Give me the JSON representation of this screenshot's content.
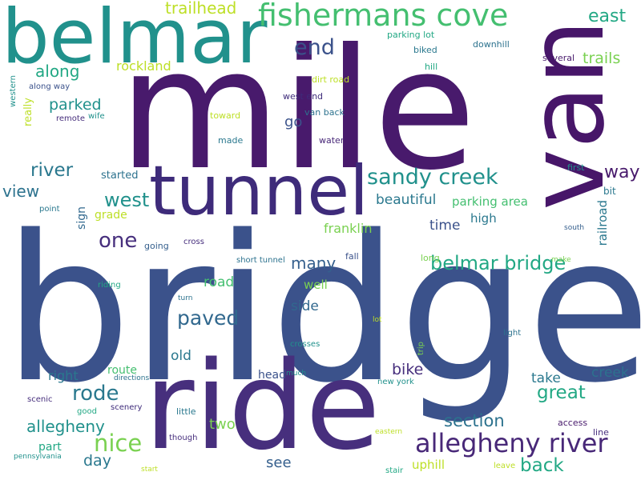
{
  "palette": {
    "p1": "#481a6c",
    "p2": "#472f7d",
    "p3": "#3b518b",
    "p4": "#355f8d",
    "p5": "#2a788e",
    "p6": "#21918c",
    "p7": "#22a884",
    "p8": "#44bf70",
    "p9": "#7ad151",
    "p10": "#bddf26"
  },
  "words": [
    {
      "id": "bridge",
      "text": "bridge",
      "color": "#3b528b"
    },
    {
      "id": "mile",
      "text": "mile",
      "color": "#481a6c"
    },
    {
      "id": "van",
      "text": "van",
      "color": "#471669"
    },
    {
      "id": "ride",
      "text": "ride",
      "color": "#472f7d"
    },
    {
      "id": "tunnel",
      "text": "tunnel",
      "color": "#3e2b7a"
    },
    {
      "id": "belmar",
      "text": "belmar",
      "color": "#21918c"
    },
    {
      "id": "fishermans-cove",
      "text": "fishermans cove",
      "color": "#44bf70"
    },
    {
      "id": "allegheny-river",
      "text": "allegheny river",
      "color": "#482878"
    },
    {
      "id": "sandy-creek",
      "text": "sandy creek",
      "color": "#21918c"
    },
    {
      "id": "belmar-bridge",
      "text": "belmar bridge",
      "color": "#22a884"
    },
    {
      "id": "east",
      "text": "east",
      "color": "#22a884"
    },
    {
      "id": "end",
      "text": "end",
      "color": "#3b528b"
    },
    {
      "id": "trailhead",
      "text": "trailhead",
      "color": "#bddf26"
    },
    {
      "id": "trails",
      "text": "trails",
      "color": "#7ad151"
    },
    {
      "id": "along",
      "text": "along",
      "color": "#22a884"
    },
    {
      "id": "parked",
      "text": "parked",
      "color": "#21918c"
    },
    {
      "id": "rockland",
      "text": "rockland",
      "color": "#bddf26"
    },
    {
      "id": "river",
      "text": "river",
      "color": "#2a788e"
    },
    {
      "id": "view",
      "text": "view",
      "color": "#2c728e"
    },
    {
      "id": "west",
      "text": "west",
      "color": "#21918c"
    },
    {
      "id": "one",
      "text": "one",
      "color": "#472f7d"
    },
    {
      "id": "way",
      "text": "way",
      "color": "#481a6c"
    },
    {
      "id": "nice",
      "text": "nice",
      "color": "#7ad151"
    },
    {
      "id": "rode",
      "text": "rode",
      "color": "#2a788e"
    },
    {
      "id": "paved",
      "text": "paved",
      "color": "#31688e"
    },
    {
      "id": "great",
      "text": "great",
      "color": "#22a884"
    },
    {
      "id": "allegheny",
      "text": "allegheny",
      "color": "#21918c"
    },
    {
      "id": "many",
      "text": "many",
      "color": "#355f8d"
    },
    {
      "id": "section",
      "text": "section",
      "color": "#2c728e"
    },
    {
      "id": "back",
      "text": "back",
      "color": "#22a884"
    },
    {
      "id": "day",
      "text": "day",
      "color": "#2a788e"
    },
    {
      "id": "bike",
      "text": "bike",
      "color": "#472f7d"
    },
    {
      "id": "creek",
      "text": "creek",
      "color": "#2c728e"
    },
    {
      "id": "see",
      "text": "see",
      "color": "#355f8d"
    },
    {
      "id": "two",
      "text": "two",
      "color": "#7ad151"
    },
    {
      "id": "road",
      "text": "road",
      "color": "#44bf70"
    },
    {
      "id": "beautiful",
      "text": "beautiful",
      "color": "#2a788e"
    },
    {
      "id": "parking-area",
      "text": "parking area",
      "color": "#44bf70"
    },
    {
      "id": "time",
      "text": "time",
      "color": "#3b528b"
    },
    {
      "id": "high",
      "text": "high",
      "color": "#2a788e"
    },
    {
      "id": "franklin",
      "text": "franklin",
      "color": "#7ad151"
    },
    {
      "id": "old",
      "text": "old",
      "color": "#2a788e"
    },
    {
      "id": "side",
      "text": "side",
      "color": "#31688e"
    },
    {
      "id": "take",
      "text": "take",
      "color": "#2a788e"
    },
    {
      "id": "right",
      "text": "right",
      "color": "#2a788e"
    },
    {
      "id": "go",
      "text": "go",
      "color": "#3b528b"
    },
    {
      "id": "well",
      "text": "well",
      "color": "#7ad151"
    },
    {
      "id": "grade",
      "text": "grade",
      "color": "#bddf26"
    },
    {
      "id": "uphill",
      "text": "uphill",
      "color": "#bddf26"
    },
    {
      "id": "part",
      "text": "part",
      "color": "#22a884"
    },
    {
      "id": "route",
      "text": "route",
      "color": "#44bf70"
    },
    {
      "id": "head",
      "text": "head",
      "color": "#3b528b"
    },
    {
      "id": "railroad",
      "text": "railroad",
      "color": "#2a788e",
      "vertical": true
    },
    {
      "id": "sign",
      "text": "sign",
      "color": "#31688e",
      "vertical": true
    },
    {
      "id": "really",
      "text": "really",
      "color": "#bddf26",
      "vertical": true
    },
    {
      "id": "parking-lot",
      "text": "parking lot",
      "color": "#22a884"
    },
    {
      "id": "downhill",
      "text": "downhill",
      "color": "#2c728e"
    },
    {
      "id": "biked",
      "text": "biked",
      "color": "#2a788e"
    },
    {
      "id": "hill",
      "text": "hill",
      "color": "#22a884"
    },
    {
      "id": "several",
      "text": "several",
      "color": "#481a6c"
    },
    {
      "id": "dirt-road",
      "text": "dirt road",
      "color": "#bddf26"
    },
    {
      "id": "west-end",
      "text": "west end",
      "color": "#3e2b7a"
    },
    {
      "id": "van-back",
      "text": "van back",
      "color": "#2c728e"
    },
    {
      "id": "toward",
      "text": "toward",
      "color": "#bddf26"
    },
    {
      "id": "made",
      "text": "made",
      "color": "#2a788e"
    },
    {
      "id": "water",
      "text": "water",
      "color": "#482878"
    },
    {
      "id": "started",
      "text": "started",
      "color": "#2c728e"
    },
    {
      "id": "first",
      "text": "first",
      "color": "#21918c"
    },
    {
      "id": "bit",
      "text": "bit",
      "color": "#2a788e"
    },
    {
      "id": "along-way",
      "text": "along way",
      "color": "#3b528b"
    },
    {
      "id": "remote",
      "text": "remote",
      "color": "#472f7d"
    },
    {
      "id": "wife",
      "text": "wife",
      "color": "#21918c"
    },
    {
      "id": "western",
      "text": "western",
      "color": "#21918c",
      "vertical": true
    },
    {
      "id": "point",
      "text": "point",
      "color": "#2a788e"
    },
    {
      "id": "going",
      "text": "going",
      "color": "#355f8d"
    },
    {
      "id": "cross",
      "text": "cross",
      "color": "#472f7d"
    },
    {
      "id": "short-tunnel",
      "text": "short tunnel",
      "color": "#2c728e"
    },
    {
      "id": "fall",
      "text": "fall",
      "color": "#3b528b"
    },
    {
      "id": "long",
      "text": "long",
      "color": "#7ad151"
    },
    {
      "id": "make",
      "text": "make",
      "color": "#7ad151"
    },
    {
      "id": "south",
      "text": "south",
      "color": "#355f8d"
    },
    {
      "id": "riding",
      "text": "riding",
      "color": "#22a884"
    },
    {
      "id": "turn",
      "text": "turn",
      "color": "#2c728e"
    },
    {
      "id": "lot",
      "text": "lot",
      "color": "#bddf26"
    },
    {
      "id": "light",
      "text": "light",
      "color": "#2c728e"
    },
    {
      "id": "crosses",
      "text": "crosses",
      "color": "#21918c"
    },
    {
      "id": "trip",
      "text": "trip",
      "color": "#7ad151",
      "vertical": true
    },
    {
      "id": "directions",
      "text": "directions",
      "color": "#2c728e"
    },
    {
      "id": "much",
      "text": "much",
      "color": "#21918c"
    },
    {
      "id": "new-york",
      "text": "new york",
      "color": "#21918c"
    },
    {
      "id": "scenic",
      "text": "scenic",
      "color": "#472f7d"
    },
    {
      "id": "scenery",
      "text": "scenery",
      "color": "#3e2b7a"
    },
    {
      "id": "good",
      "text": "good",
      "color": "#22a884"
    },
    {
      "id": "little",
      "text": "little",
      "color": "#2a788e"
    },
    {
      "id": "access",
      "text": "access",
      "color": "#481a6c"
    },
    {
      "id": "line",
      "text": "line",
      "color": "#472f7d"
    },
    {
      "id": "though",
      "text": "though",
      "color": "#472f7d"
    },
    {
      "id": "eastern",
      "text": "eastern",
      "color": "#bddf26"
    },
    {
      "id": "pennsylvania",
      "text": "pennsylvania",
      "color": "#21918c"
    },
    {
      "id": "start",
      "text": "start",
      "color": "#bddf26"
    },
    {
      "id": "stair",
      "text": "stair",
      "color": "#22a884"
    },
    {
      "id": "leave",
      "text": "leave",
      "color": "#bddf26"
    }
  ]
}
